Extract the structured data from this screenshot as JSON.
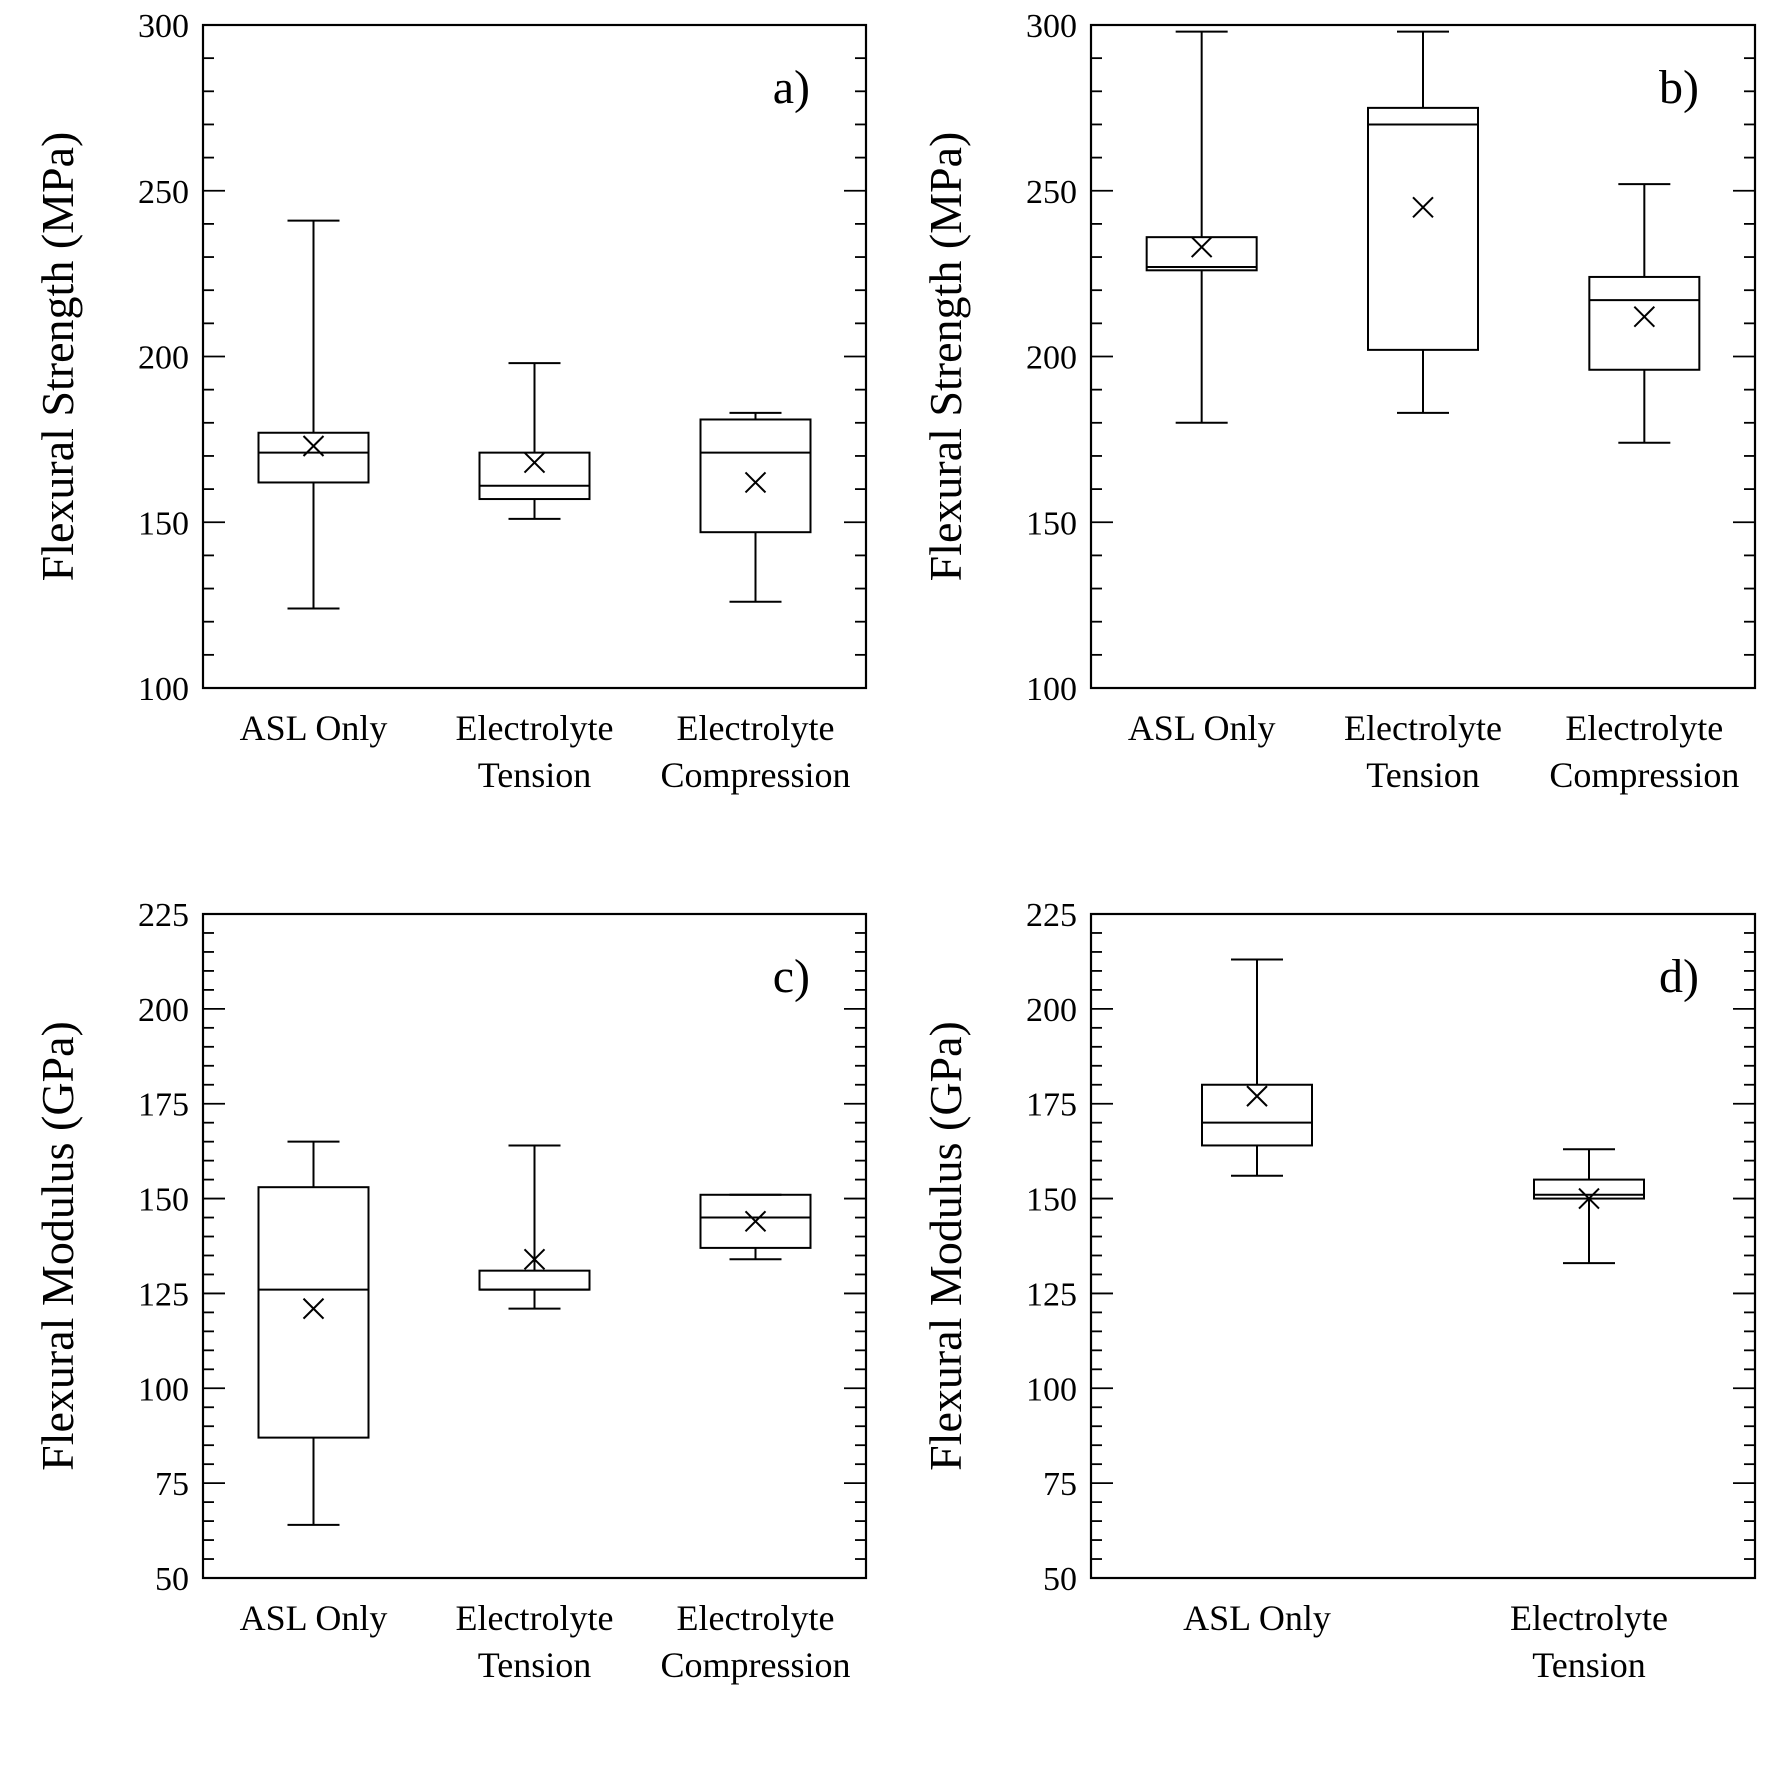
{
  "chart_data": [
    {
      "type": "box",
      "panel_label": "a)",
      "ylabel": "Flexural Strength (MPa)",
      "ylim": [
        100,
        300
      ],
      "yticks": [
        100,
        150,
        200,
        250,
        300
      ],
      "categories": [
        [
          "ASL Only"
        ],
        [
          "Electrolyte",
          "Tension"
        ],
        [
          "Electrolyte",
          "Compression"
        ]
      ],
      "boxes": [
        {
          "min": 124,
          "q1": 162,
          "median": 171,
          "q3": 177,
          "max": 241,
          "mean": 173
        },
        {
          "min": 151,
          "q1": 157,
          "median": 161,
          "q3": 171,
          "max": 198,
          "mean": 168
        },
        {
          "min": 126,
          "q1": 147,
          "median": 171,
          "q3": 181,
          "max": 183,
          "mean": 162
        }
      ]
    },
    {
      "type": "box",
      "panel_label": "b)",
      "ylabel": "Flexural Strength (MPa)",
      "ylim": [
        100,
        300
      ],
      "yticks": [
        100,
        150,
        200,
        250,
        300
      ],
      "categories": [
        [
          "ASL Only"
        ],
        [
          "Electrolyte",
          "Tension"
        ],
        [
          "Electrolyte",
          "Compression"
        ]
      ],
      "boxes": [
        {
          "min": 180,
          "q1": 226,
          "median": 227,
          "q3": 236,
          "max": 298,
          "mean": 233
        },
        {
          "min": 183,
          "q1": 202,
          "median": 270,
          "q3": 275,
          "max": 298,
          "mean": 245
        },
        {
          "min": 174,
          "q1": 196,
          "median": 217,
          "q3": 224,
          "max": 252,
          "mean": 212
        }
      ]
    },
    {
      "type": "box",
      "panel_label": "c)",
      "ylabel": "Flexural Modulus (GPa)",
      "ylim": [
        50,
        225
      ],
      "yticks": [
        50,
        75,
        100,
        125,
        150,
        175,
        200,
        225
      ],
      "categories": [
        [
          "ASL Only"
        ],
        [
          "Electrolyte",
          "Tension"
        ],
        [
          "Electrolyte",
          "Compression"
        ]
      ],
      "boxes": [
        {
          "min": 64,
          "q1": 87,
          "median": 126,
          "q3": 153,
          "max": 165,
          "mean": 121
        },
        {
          "min": 121,
          "q1": 126,
          "median": 126,
          "q3": 131,
          "max": 164,
          "mean": 134
        },
        {
          "min": 134,
          "q1": 137,
          "median": 145,
          "q3": 151,
          "max": 151,
          "mean": 144
        }
      ]
    },
    {
      "type": "box",
      "panel_label": "d)",
      "ylabel": "Flexural Modulus (GPa)",
      "ylim": [
        50,
        225
      ],
      "yticks": [
        50,
        75,
        100,
        125,
        150,
        175,
        200,
        225
      ],
      "categories": [
        [
          "ASL Only"
        ],
        [
          "Electrolyte",
          "Tension"
        ]
      ],
      "boxes": [
        {
          "min": 156,
          "q1": 164,
          "median": 170,
          "q3": 180,
          "max": 213,
          "mean": 177
        },
        {
          "min": 133,
          "q1": 150,
          "median": 151,
          "q3": 155,
          "max": 163,
          "mean": 150
        }
      ]
    }
  ]
}
